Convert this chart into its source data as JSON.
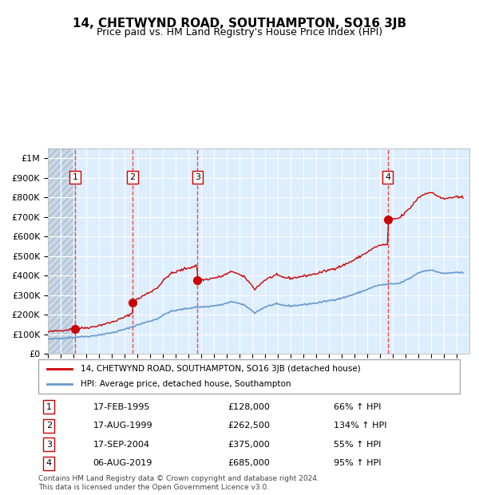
{
  "title": "14, CHETWYND ROAD, SOUTHAMPTON, SO16 3JB",
  "subtitle": "Price paid vs. HM Land Registry's House Price Index (HPI)",
  "legend_line1": "14, CHETWYND ROAD, SOUTHAMPTON, SO16 3JB (detached house)",
  "legend_line2": "HPI: Average price, detached house, Southampton",
  "footer": "Contains HM Land Registry data © Crown copyright and database right 2024.\nThis data is licensed under the Open Government Licence v3.0.",
  "sales": [
    {
      "num": 1,
      "date": "17-FEB-1995",
      "price": 128000,
      "hpi_pct": "66%",
      "x_year": 1995.12
    },
    {
      "num": 2,
      "date": "17-AUG-1999",
      "price": 262500,
      "hpi_pct": "134%",
      "x_year": 1999.63
    },
    {
      "num": 3,
      "date": "17-SEP-2004",
      "price": 375000,
      "hpi_pct": "55%",
      "x_year": 2004.71
    },
    {
      "num": 4,
      "date": "06-AUG-2019",
      "price": 685000,
      "hpi_pct": "95%",
      "x_year": 2019.6
    }
  ],
  "ylim": [
    0,
    1050000
  ],
  "xlim": [
    1993,
    2026
  ],
  "yticks": [
    0,
    100000,
    200000,
    300000,
    400000,
    500000,
    600000,
    700000,
    800000,
    900000,
    1000000
  ],
  "ytick_labels": [
    "£0",
    "£100K",
    "£200K",
    "£300K",
    "£400K",
    "£500K",
    "£600K",
    "£700K",
    "£800K",
    "£900K",
    "£1M"
  ],
  "hpi_color": "#6699cc",
  "price_color": "#cc0000",
  "bg_color": "#ddeeff",
  "hatch_color": "#bbccdd",
  "grid_color": "#ffffff",
  "dashed_color": "#ff4444",
  "marker_color": "#cc0000"
}
